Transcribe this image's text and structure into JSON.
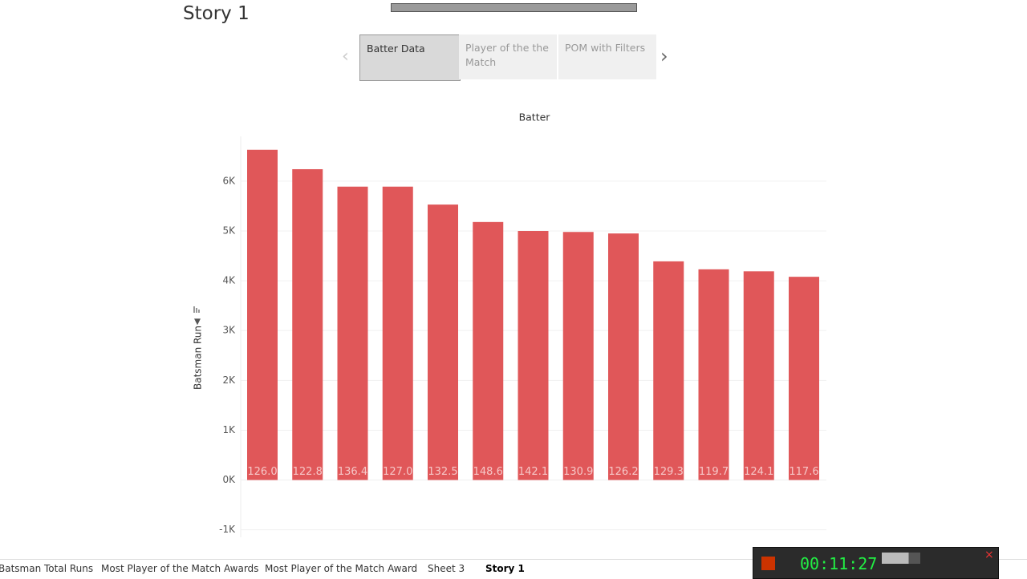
{
  "story": {
    "title": "Story 1",
    "tabs": [
      "Batter Data",
      "Player of the the Match",
      "POM with Filters"
    ]
  },
  "chart_data": {
    "type": "bar",
    "title": "Batter",
    "y_label": "Batsman Run",
    "categories": [
      null,
      null,
      null,
      null,
      null,
      null,
      null,
      null,
      null,
      null,
      null,
      null,
      null
    ],
    "values": [
      6630,
      6240,
      5890,
      5890,
      5530,
      5180,
      5000,
      4980,
      4950,
      4390,
      4230,
      4190,
      4080
    ],
    "bar_labels": [
      "126.0",
      "122.8",
      "136.4",
      "127.0",
      "132.5",
      "148.6",
      "142.1",
      "130.9",
      "126.2",
      "129.3",
      "119.7",
      "124.1",
      "117.6"
    ],
    "color": "#e05759",
    "ylim": [
      -1150,
      6900
    ],
    "yticks": [
      {
        "value": -1000,
        "label": "-1K"
      },
      {
        "value": 0,
        "label": "0K"
      },
      {
        "value": 1000,
        "label": "1K"
      },
      {
        "value": 2000,
        "label": "2K"
      },
      {
        "value": 3000,
        "label": "3K"
      },
      {
        "value": 4000,
        "label": "4K"
      },
      {
        "value": 5000,
        "label": "5K"
      },
      {
        "value": 6000,
        "label": "6K"
      }
    ],
    "grid": true
  },
  "sheet_tabs": [
    "Batsman Total Runs",
    "Most Player of the Match Awards",
    "Most Player of the Match Award",
    "Sheet 3",
    "Story 1"
  ],
  "clock": "00:11:27"
}
